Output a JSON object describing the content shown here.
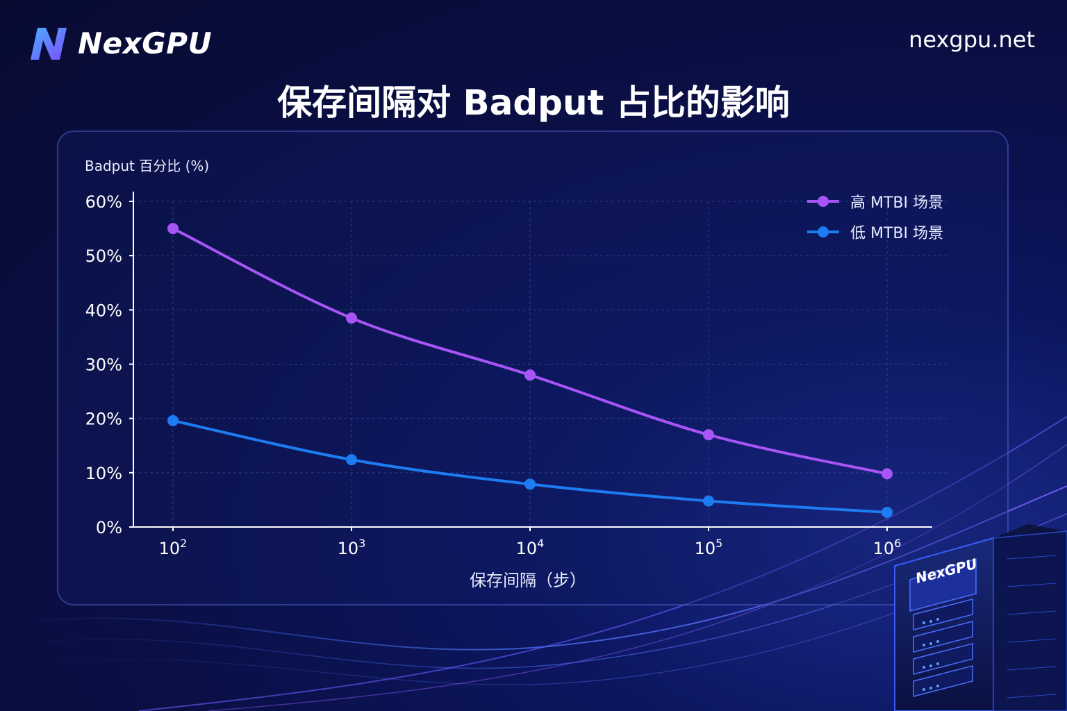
{
  "brand": {
    "name": "NexGPU",
    "url": "nexgpu.net"
  },
  "title": "保存间隔对 Badput 占比的影响",
  "server_label": "NexGPU",
  "colors": {
    "high": "#a855f7",
    "low": "#1d7cf2",
    "accent": "#5a6edc"
  },
  "chart_data": {
    "type": "line",
    "ylabel": "Badput 百分比 (%)",
    "xlabel": "保存间隔（步）",
    "x": [
      100,
      1000,
      10000,
      100000,
      1000000
    ],
    "x_ticks": [
      {
        "base": "10",
        "exp": "2"
      },
      {
        "base": "10",
        "exp": "3"
      },
      {
        "base": "10",
        "exp": "4"
      },
      {
        "base": "10",
        "exp": "5"
      },
      {
        "base": "10",
        "exp": "6"
      }
    ],
    "x_scale": "log",
    "y_ticks": [
      "0%",
      "10%",
      "20%",
      "30%",
      "40%",
      "50%",
      "60%"
    ],
    "ylim": [
      0,
      60
    ],
    "grid": true,
    "legend_position": "top-right",
    "series": [
      {
        "name": "高 MTBI 场景",
        "color": "#a855f7",
        "values": [
          55,
          38.5,
          28,
          17,
          9.8
        ]
      },
      {
        "name": "低 MTBI 场景",
        "color": "#1d7cf2",
        "values": [
          19.6,
          12.4,
          7.9,
          4.8,
          2.7
        ]
      }
    ]
  }
}
